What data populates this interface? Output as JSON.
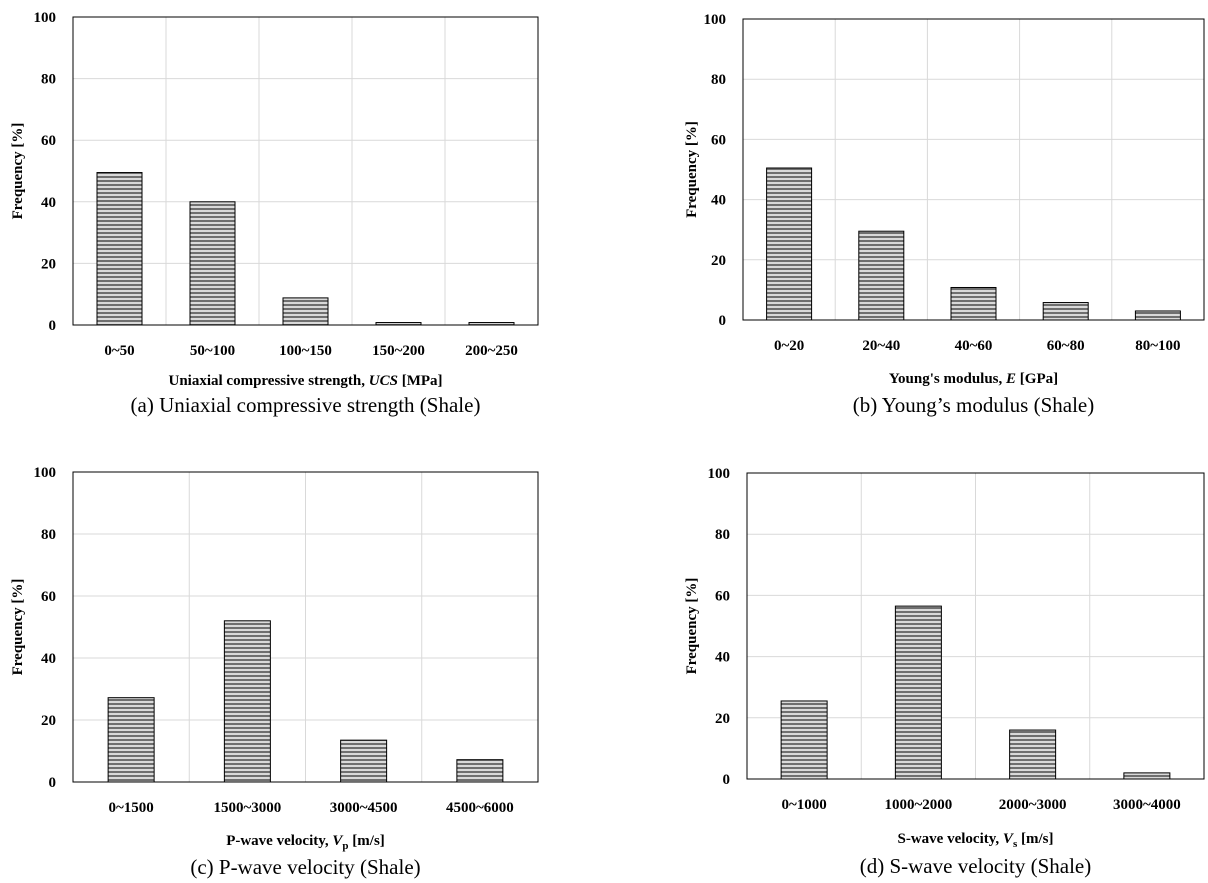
{
  "chart_data": [
    {
      "type": "bar",
      "categories": [
        "0~50",
        "50~100",
        "100~150",
        "150~200",
        "200~250"
      ],
      "values": [
        49.5,
        40,
        8.8,
        0.8,
        0.8
      ],
      "ylabel": "Frequency [%]",
      "xlabel": {
        "pre": "Uniaxial compressive strength, ",
        "ital": "UCS",
        "sub": "",
        "post": " [MPa]"
      },
      "caption": "(a) Uniaxial compressive strength (Shale)",
      "ylim": [
        0,
        100
      ],
      "yticks": [
        0,
        20,
        40,
        60,
        80,
        100
      ],
      "grid": true
    },
    {
      "type": "bar",
      "categories": [
        "0~20",
        "20~40",
        "40~60",
        "60~80",
        "80~100"
      ],
      "values": [
        50.5,
        29.5,
        10.8,
        5.8,
        3
      ],
      "ylabel": "Frequency [%]",
      "xlabel": {
        "pre": "Young's modulus, ",
        "ital": "E",
        "sub": "",
        "post": " [GPa]"
      },
      "caption": "(b) Young’s modulus (Shale)",
      "ylim": [
        0,
        100
      ],
      "yticks": [
        0,
        20,
        40,
        60,
        80,
        100
      ],
      "grid": true
    },
    {
      "type": "bar",
      "categories": [
        "0~1500",
        "1500~3000",
        "3000~4500",
        "4500~6000"
      ],
      "values": [
        27.2,
        52,
        13.5,
        7.2
      ],
      "ylabel": "Frequency [%]",
      "xlabel": {
        "pre": "P-wave velocity, ",
        "ital": "V",
        "sub": "p",
        "post": " [m/s]"
      },
      "caption": "(c)  P-wave velocity (Shale)",
      "ylim": [
        0,
        100
      ],
      "yticks": [
        0,
        20,
        40,
        60,
        80,
        100
      ],
      "grid": true
    },
    {
      "type": "bar",
      "categories": [
        "0~1000",
        "1000~2000",
        "2000~3000",
        "3000~4000"
      ],
      "values": [
        25.5,
        56.5,
        16,
        2
      ],
      "ylabel": "Frequency [%]",
      "xlabel": {
        "pre": "S-wave velocity, ",
        "ital": "V",
        "sub": "s",
        "post": " [m/s]"
      },
      "caption": "(d) S-wave velocity (Shale)",
      "ylim": [
        0,
        100
      ],
      "yticks": [
        0,
        20,
        40,
        60,
        80,
        100
      ],
      "grid": true
    }
  ]
}
